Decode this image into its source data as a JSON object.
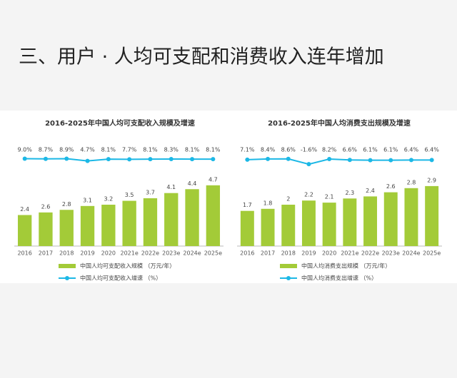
{
  "header": {
    "title": "三、用户 · 人均可支配和消费收入连年增加"
  },
  "chart_data": [
    {
      "type": "bar-line",
      "title": "2016-2025年中国人均可支配收入规模及增速",
      "categories": [
        "2016",
        "2017",
        "2018",
        "2019",
        "2020",
        "2021e",
        "2022e",
        "2023e",
        "2024e",
        "2025e"
      ],
      "series": [
        {
          "name": "中国人均可支配收入规模 （万元/年）",
          "color": "#a3cb38",
          "type": "bar",
          "values": [
            2.4,
            2.6,
            2.8,
            3.1,
            3.2,
            3.5,
            3.7,
            4.1,
            4.4,
            4.7
          ]
        },
        {
          "name": "中国人均可支配收入增速 （%）",
          "color": "#1cb8e6",
          "type": "line",
          "axis": "y2",
          "values": [
            9.0,
            8.7,
            8.9,
            4.7,
            8.1,
            7.7,
            8.1,
            8.3,
            8.1,
            8.1
          ],
          "value_labels": [
            "9.0%",
            "8.7%",
            "8.9%",
            "4.7%",
            "8.1%",
            "7.7%",
            "8.1%",
            "8.3%",
            "8.1%",
            "8.1%"
          ]
        }
      ],
      "ylim": [
        0,
        8
      ],
      "y2lim": [
        -160,
        40
      ]
    },
    {
      "type": "bar-line",
      "title": "2016-2025年中国人均消费支出规模及增速",
      "categories": [
        "2016",
        "2017",
        "2018",
        "2019",
        "2020",
        "2021e",
        "2022e",
        "2023e",
        "2024e",
        "2025e"
      ],
      "series": [
        {
          "name": "中国人均消费支出规模 （万元/年）",
          "color": "#a3cb38",
          "type": "bar",
          "values": [
            1.7,
            1.8,
            2.0,
            2.2,
            2.1,
            2.3,
            2.4,
            2.6,
            2.8,
            2.9
          ]
        },
        {
          "name": "中国人均消费支出增速 （%）",
          "color": "#1cb8e6",
          "type": "line",
          "axis": "y2",
          "values": [
            7.1,
            8.4,
            8.6,
            -1.6,
            8.2,
            6.6,
            6.1,
            6.1,
            6.4,
            6.4
          ],
          "value_labels": [
            "7.1%",
            "8.4%",
            "8.6%",
            "-1.6%",
            "8.2%",
            "6.6%",
            "6.1%",
            "6.1%",
            "6.4%",
            "6.4%"
          ]
        }
      ],
      "ylim": [
        0,
        5
      ],
      "y2lim": [
        -160,
        40
      ]
    }
  ]
}
